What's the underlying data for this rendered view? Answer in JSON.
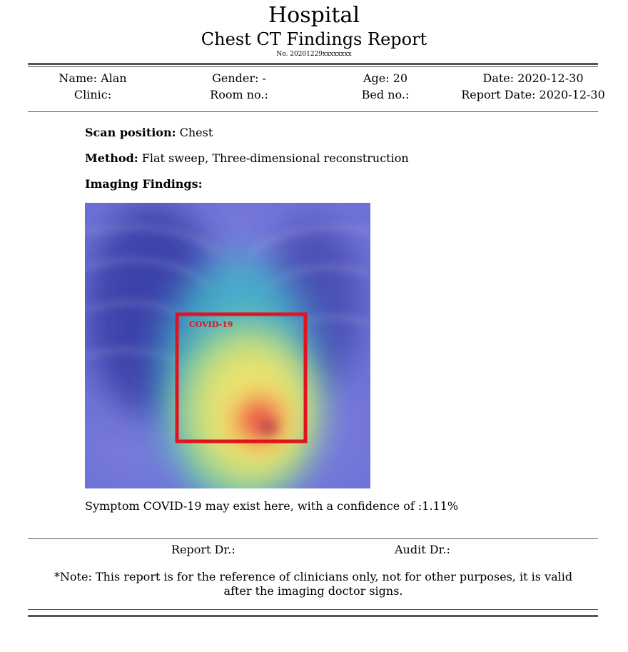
{
  "header": {
    "hospital": "Hospital",
    "report_title": "Chest CT Findings Report",
    "report_number": "No. 20201229xxxxxxxx"
  },
  "patient": {
    "name": "Name: Alan",
    "gender": "Gender: -",
    "age": "Age: 20",
    "date": "Date: 2020-12-30",
    "clinic": "Clinic:",
    "room": "Room no.:",
    "bed": "Bed no.:",
    "report_date": "Report Date: 2020-12-30"
  },
  "exam": {
    "scan_position_label": "Scan position:",
    "scan_position_value": "Chest",
    "method_label": "Method:",
    "method_value": "Flat sweep, Three-dimensional reconstruction",
    "findings_label": "Imaging Findings:"
  },
  "image": {
    "detection_label": "COVID-19",
    "box_color": "#e0141e",
    "heatmap_base_color": "#6a6fd8"
  },
  "result": {
    "text": "Symptom COVID-19 may exist here, with a confidence of :1.11%"
  },
  "signatures": {
    "report_dr": "Report Dr.:",
    "audit_dr": "Audit Dr.:"
  },
  "note": {
    "text": "*Note: This report is for the reference of clinicians only, not for other purposes, it is valid after the imaging doctor signs."
  }
}
